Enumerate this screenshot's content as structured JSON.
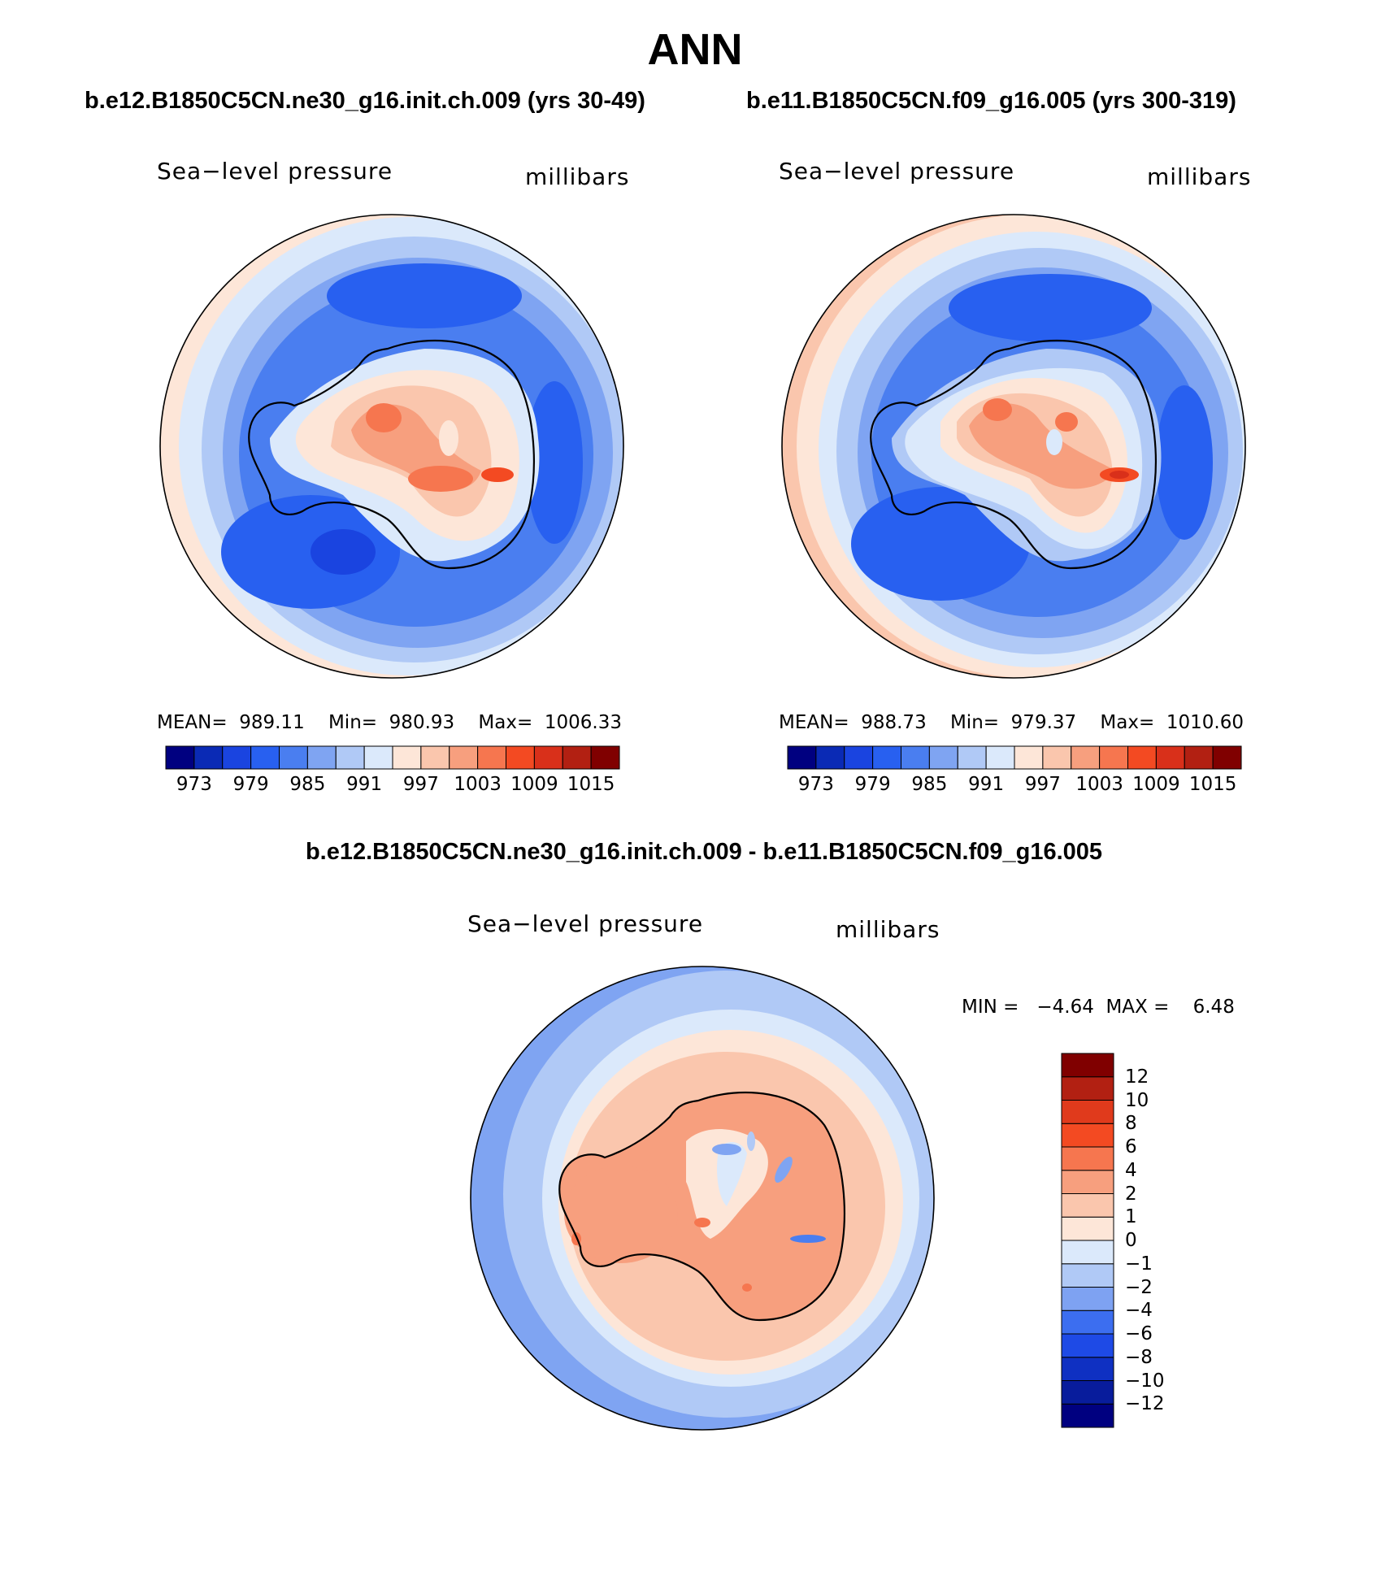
{
  "title": "ANN",
  "colors": {
    "abs": [
      "#000080",
      "#0a2ab5",
      "#1a44e0",
      "#2860f0",
      "#4a7ef0",
      "#7fa4f2",
      "#b0c9f6",
      "#dbe9fb",
      "#fde6d8",
      "#fac6ad",
      "#f79f7e",
      "#f6764f",
      "#f34a22",
      "#d9301a",
      "#b22012",
      "#800000"
    ],
    "diff": [
      "#000080",
      "#081c9c",
      "#0f30c2",
      "#1e4ae6",
      "#3c6ef0",
      "#7ea2f2",
      "#b0c9f6",
      "#dbe9fb",
      "#fde6d8",
      "#fac6ad",
      "#f79f7e",
      "#f6764f",
      "#f34a22",
      "#e03a1c",
      "#b22012",
      "#800000"
    ]
  },
  "panels": [
    {
      "title": "b.e12.B1850C5CN.ne30_g16.init.ch.009 (yrs 30-49)",
      "left_label": "Sea−level pressure",
      "right_label": "millibars",
      "stats": {
        "mean_label": "MEAN=",
        "mean": "989.11",
        "min_label": "Min=",
        "min": "980.93",
        "max_label": "Max=",
        "max": "1006.33"
      },
      "ticks": [
        "973",
        "979",
        "985",
        "991",
        "997",
        "1003",
        "1009",
        "1015"
      ]
    },
    {
      "title": "b.e11.B1850C5CN.f09_g16.005 (yrs 300-319)",
      "left_label": "Sea−level pressure",
      "right_label": "millibars",
      "stats": {
        "mean_label": "MEAN=",
        "mean": "988.73",
        "min_label": "Min=",
        "min": "979.37",
        "max_label": "Max=",
        "max": "1010.60"
      },
      "ticks": [
        "973",
        "979",
        "985",
        "991",
        "997",
        "1003",
        "1009",
        "1015"
      ]
    }
  ],
  "diff": {
    "title": "b.e12.B1850C5CN.ne30_g16.init.ch.009 - b.e11.B1850C5CN.f09_g16.005",
    "left_label": "Sea−level pressure",
    "right_label": "millibars",
    "minmax": "MIN =   −4.64  MAX =    6.48",
    "ticks": [
      "12",
      "10",
      "8",
      "6",
      "4",
      "2",
      "1",
      "0",
      "−1",
      "−2",
      "−4",
      "−6",
      "−8",
      "−10",
      "−12"
    ]
  }
}
